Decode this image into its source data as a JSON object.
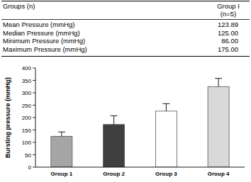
{
  "table": {
    "header": [
      "Groups (n)",
      "Group I"
    ],
    "subheader": "(n=5)",
    "rows": [
      [
        "Mean Pressure (mmHg)",
        "123.89"
      ],
      [
        "Median Pressure (mmHg)",
        "125.00"
      ],
      [
        "Minimum Pressure (mmHg)",
        "86.00"
      ],
      [
        "Maximum Pressure (mmHg)",
        "175.00"
      ]
    ]
  },
  "chart_data": {
    "type": "bar",
    "y_label": "Bursting pressure (mmHg)",
    "categories": [
      "Group 1",
      "Group 2",
      "Group 3",
      "Group 4"
    ],
    "values": [
      124,
      172,
      226,
      325
    ],
    "errors": [
      18,
      35,
      30,
      33
    ],
    "colors": [
      "#a6a6a6",
      "#3f3f3f",
      "#ffffff",
      "#d9d9d9"
    ],
    "ylim": [
      0,
      400
    ],
    "yticks": [
      0,
      50,
      100,
      150,
      200,
      250,
      300,
      350,
      400
    ],
    "grid": false
  }
}
